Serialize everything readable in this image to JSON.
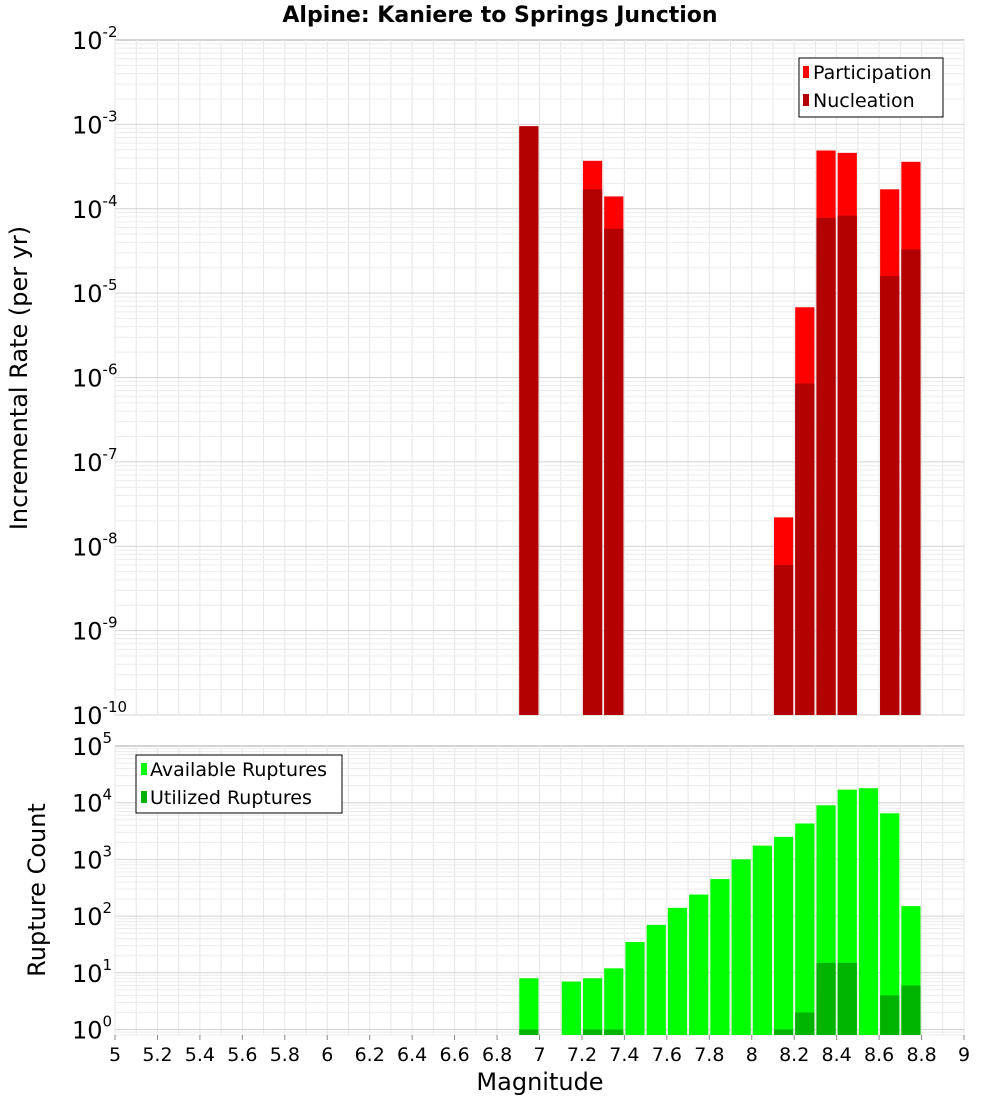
{
  "chart_data": [
    {
      "type": "bar",
      "title": "Alpine: Kaniere to Springs Junction",
      "xlabel": "",
      "ylabel": "Incremental Rate (per yr)",
      "yscale": "log",
      "ylim": [
        1e-10,
        0.01
      ],
      "xlim": [
        5,
        9
      ],
      "y_tick_labels": [
        {
          "base": "10",
          "exp": "-10"
        },
        {
          "base": "10",
          "exp": "-9"
        },
        {
          "base": "10",
          "exp": "-8"
        },
        {
          "base": "10",
          "exp": "-7"
        },
        {
          "base": "10",
          "exp": "-6"
        },
        {
          "base": "10",
          "exp": "-5"
        },
        {
          "base": "10",
          "exp": "-4"
        },
        {
          "base": "10",
          "exp": "-3"
        },
        {
          "base": "10",
          "exp": "-2"
        }
      ],
      "grid": true,
      "legend_position": "top-right",
      "legend": [
        "Participation",
        "Nucleation"
      ],
      "colors": {
        "participation": "#ff0000",
        "nucleation": "#b30000"
      },
      "series": [
        {
          "name": "Participation",
          "x": [
            6.95,
            7.25,
            7.35,
            8.15,
            8.25,
            8.35,
            8.45,
            8.65,
            8.75
          ],
          "values": [
            0.00095,
            0.00037,
            0.00014,
            2.2e-08,
            6.8e-06,
            0.00049,
            0.00046,
            0.00017,
            0.00036
          ]
        },
        {
          "name": "Nucleation",
          "x": [
            6.95,
            7.25,
            7.35,
            8.15,
            8.25,
            8.35,
            8.45,
            8.65,
            8.75
          ],
          "values": [
            0.00095,
            0.00017,
            5.8e-05,
            6e-09,
            8.5e-07,
            7.8e-05,
            8.3e-05,
            1.6e-05,
            3.3e-05
          ]
        }
      ]
    },
    {
      "type": "bar",
      "xlabel": "Magnitude",
      "ylabel": "Rupture Count",
      "yscale": "log",
      "ylim": [
        0.8,
        100000.0
      ],
      "xlim": [
        5,
        9
      ],
      "x_ticks": [
        "5",
        "5.2",
        "5.4",
        "5.6",
        "5.8",
        "6",
        "6.2",
        "6.4",
        "6.6",
        "6.8",
        "7",
        "7.2",
        "7.4",
        "7.6",
        "7.8",
        "8",
        "8.2",
        "8.4",
        "8.6",
        "8.8",
        "9"
      ],
      "y_tick_labels": [
        {
          "base": "10",
          "exp": "0"
        },
        {
          "base": "10",
          "exp": "1"
        },
        {
          "base": "10",
          "exp": "2"
        },
        {
          "base": "10",
          "exp": "3"
        },
        {
          "base": "10",
          "exp": "4"
        },
        {
          "base": "10",
          "exp": "5"
        }
      ],
      "grid": true,
      "legend_position": "top-left",
      "legend": [
        "Available Ruptures",
        "Utilized Ruptures"
      ],
      "colors": {
        "available": "#00ff00",
        "utilized": "#00b300"
      },
      "series": [
        {
          "name": "Available Ruptures",
          "x": [
            6.95,
            7.15,
            7.25,
            7.35,
            7.45,
            7.55,
            7.65,
            7.75,
            7.85,
            7.95,
            8.05,
            8.15,
            8.25,
            8.35,
            8.45,
            8.55,
            8.65,
            8.75
          ],
          "values": [
            8,
            7,
            8,
            12,
            35,
            70,
            140,
            240,
            450,
            1000,
            1750,
            2500,
            4300,
            9000,
            17000,
            18000,
            6500,
            150
          ]
        },
        {
          "name": "Utilized Ruptures",
          "x": [
            6.95,
            7.25,
            7.35,
            8.15,
            8.25,
            8.35,
            8.45,
            8.65,
            8.75
          ],
          "values": [
            1,
            1,
            1,
            1,
            2,
            15,
            15,
            4,
            6
          ]
        }
      ]
    }
  ]
}
